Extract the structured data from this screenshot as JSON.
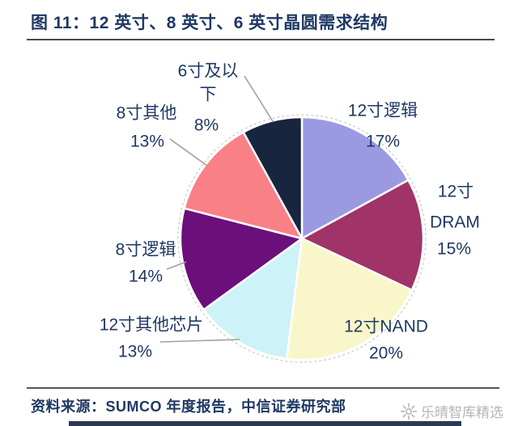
{
  "title": "图 11：12 英寸、8 英寸、6 英寸晶圆需求结构",
  "chart_data": {
    "type": "pie",
    "title": "图 11：12 英寸、8 英寸、6 英寸晶圆需求结构",
    "unit": "%",
    "direction": "clockwise",
    "start_angle_deg": 0,
    "legend": "none",
    "slices": [
      {
        "label": "12寸逻辑",
        "value": 17,
        "color": "#9a99e1"
      },
      {
        "label": "12寸DRAM",
        "value": 15,
        "color": "#a03368"
      },
      {
        "label": "12寸NAND",
        "value": 20,
        "color": "#f9f6c9"
      },
      {
        "label": "12寸其他芯片",
        "value": 13,
        "color": "#cdf2f7"
      },
      {
        "label": "8寸逻辑",
        "value": 14,
        "color": "#6b0f7a"
      },
      {
        "label": "8寸其他",
        "value": 13,
        "color": "#f98086"
      },
      {
        "label": "6寸及以下",
        "value": 8,
        "color": "#17253f"
      }
    ],
    "label_lines": [
      "12寸逻辑",
      "17%",
      "12寸",
      "DRAM",
      "15%",
      "12寸NAND",
      "20%",
      "12寸其他芯片",
      "13%",
      "8寸逻辑",
      "14%",
      "8寸其他",
      "13%",
      "6寸及以",
      "下",
      "8%"
    ]
  },
  "footer": {
    "source": "资料来源：SUMCO 年度报告，中信证券研究部",
    "watermark": "乐晴智库精选"
  },
  "colors": {
    "text_navy": "#1f3864",
    "leader_line": "#a0a0a0",
    "rule": "#4a4a4a",
    "watermark_gray": "#b5b5b5",
    "bottom_bar": "#2b3a52"
  }
}
